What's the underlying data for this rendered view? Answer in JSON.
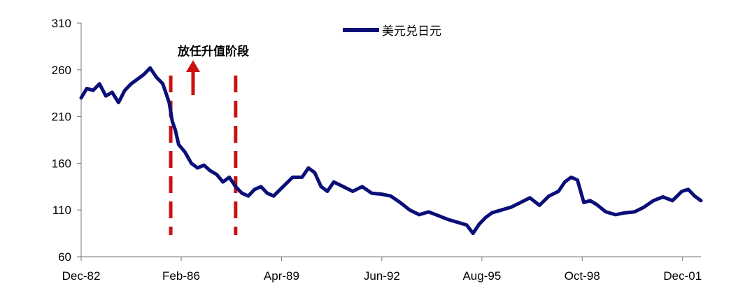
{
  "chart_data": {
    "type": "line",
    "title": "",
    "xlabel": "",
    "ylabel": "",
    "ylim": [
      60,
      310
    ],
    "yticks": [
      60,
      110,
      160,
      210,
      260,
      310
    ],
    "x_tick_labels": [
      "Dec-82",
      "Feb-86",
      "Apr-89",
      "Jun-92",
      "Aug-95",
      "Oct-98",
      "Dec-01"
    ],
    "x_tick_dates": [
      1982.92,
      1986.08,
      1989.25,
      1992.42,
      1995.58,
      1998.75,
      2001.92
    ],
    "xlim": [
      1982.92,
      2002.5
    ],
    "grid": false,
    "legend": "top-center",
    "series": [
      {
        "name": "美元兑日元",
        "color": "#0a0f78",
        "x": [
          1982.92,
          1983.1,
          1983.3,
          1983.5,
          1983.7,
          1983.9,
          1984.1,
          1984.3,
          1984.5,
          1984.7,
          1984.9,
          1985.1,
          1985.3,
          1985.5,
          1985.6,
          1985.7,
          1985.8,
          1985.9,
          1986.0,
          1986.2,
          1986.4,
          1986.6,
          1986.8,
          1987.0,
          1987.2,
          1987.4,
          1987.6,
          1987.8,
          1988.0,
          1988.2,
          1988.4,
          1988.6,
          1988.8,
          1989.0,
          1989.3,
          1989.6,
          1989.9,
          1990.1,
          1990.3,
          1990.5,
          1990.7,
          1990.9,
          1991.2,
          1991.5,
          1991.8,
          1992.1,
          1992.4,
          1992.7,
          1993.0,
          1993.3,
          1993.6,
          1993.9,
          1994.2,
          1994.5,
          1994.8,
          1995.1,
          1995.3,
          1995.5,
          1995.7,
          1995.9,
          1996.2,
          1996.5,
          1996.8,
          1997.1,
          1997.4,
          1997.7,
          1998.0,
          1998.2,
          1998.4,
          1998.6,
          1998.8,
          1999.0,
          1999.2,
          1999.5,
          1999.8,
          2000.1,
          2000.4,
          2000.7,
          2001.0,
          2001.3,
          2001.6,
          2001.9,
          2002.1,
          2002.3,
          2002.5
        ],
        "values": [
          230,
          240,
          238,
          245,
          232,
          236,
          225,
          238,
          245,
          250,
          255,
          262,
          252,
          245,
          235,
          225,
          205,
          195,
          180,
          172,
          160,
          155,
          158,
          152,
          148,
          140,
          145,
          135,
          128,
          125,
          132,
          135,
          128,
          125,
          135,
          145,
          145,
          155,
          150,
          135,
          130,
          140,
          135,
          130,
          135,
          128,
          127,
          125,
          118,
          110,
          105,
          108,
          104,
          100,
          97,
          94,
          85,
          95,
          102,
          107,
          110,
          113,
          118,
          123,
          115,
          125,
          130,
          140,
          145,
          142,
          118,
          120,
          116,
          108,
          105,
          107,
          108,
          113,
          120,
          124,
          120,
          130,
          132,
          125,
          120
        ]
      }
    ],
    "annotations": [
      {
        "text": "放任升值阶段",
        "type": "label-with-arrow"
      },
      {
        "type": "vertical-dashed-line",
        "x": 1985.75
      },
      {
        "type": "vertical-dashed-line",
        "x": 1987.8
      }
    ]
  },
  "colors": {
    "series": "#0a0f78",
    "marker_lines": "#cc1111",
    "arrow": "#cc1111",
    "axis": "#777777",
    "text": "#000000"
  }
}
